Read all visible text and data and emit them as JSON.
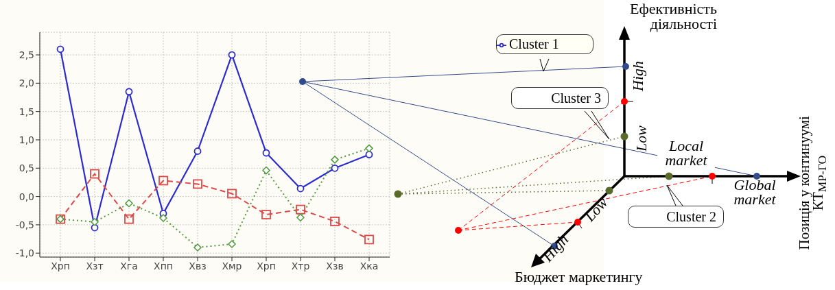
{
  "chart_data": [
    {
      "type": "line",
      "categories": [
        "Xрп",
        "Xзт",
        "Xга",
        "Xпп",
        "Xвз",
        "Xмр",
        "Xрп",
        "Xтр",
        "Xзв",
        "Xка"
      ],
      "series": [
        {
          "name": "Cluster 1",
          "color": "#2b2bd0",
          "marker": "circle",
          "line_style": "solid",
          "values": [
            2.6,
            -0.55,
            1.85,
            -0.3,
            0.8,
            2.5,
            0.77,
            0.14,
            0.5,
            0.74
          ]
        },
        {
          "color": "#e04848",
          "marker": "square",
          "line_style": "dashed",
          "values": [
            -0.4,
            0.4,
            -0.4,
            0.28,
            0.22,
            0.05,
            -0.32,
            -0.23,
            -0.44,
            -0.76
          ]
        },
        {
          "color": "#4f9a3a",
          "marker": "diamond",
          "line_style": "dotted",
          "values": [
            -0.4,
            -0.45,
            -0.12,
            -0.38,
            -0.9,
            -0.84,
            0.46,
            -0.37,
            0.65,
            0.85
          ]
        }
      ],
      "ylim": [
        -1.07,
        2.9
      ],
      "yticks": [
        {
          "value": -1.0,
          "label": "-1,0"
        },
        {
          "value": -0.5,
          "label": "-0,5"
        },
        {
          "value": 0,
          "label": "0,0"
        },
        {
          "value": 0.5,
          "label": "0,5"
        },
        {
          "value": 1.0,
          "label": "1,0"
        },
        {
          "value": 1.5,
          "label": "1,5"
        },
        {
          "value": 2.0,
          "label": "2,0"
        },
        {
          "value": 2.5,
          "label": "2,5"
        }
      ],
      "grid": true,
      "legend": "top right"
    },
    {
      "type": "other",
      "annotations": [
        "Ефективність діяльності",
        "High",
        "Low",
        "Local market",
        "Global market",
        "Позиція у континуумі КТ$_{МР-ГО}$",
        "Бюджет маркетингу",
        "High",
        "Low",
        "Cluster 3",
        "Cluster 2"
      ]
    }
  ]
}
